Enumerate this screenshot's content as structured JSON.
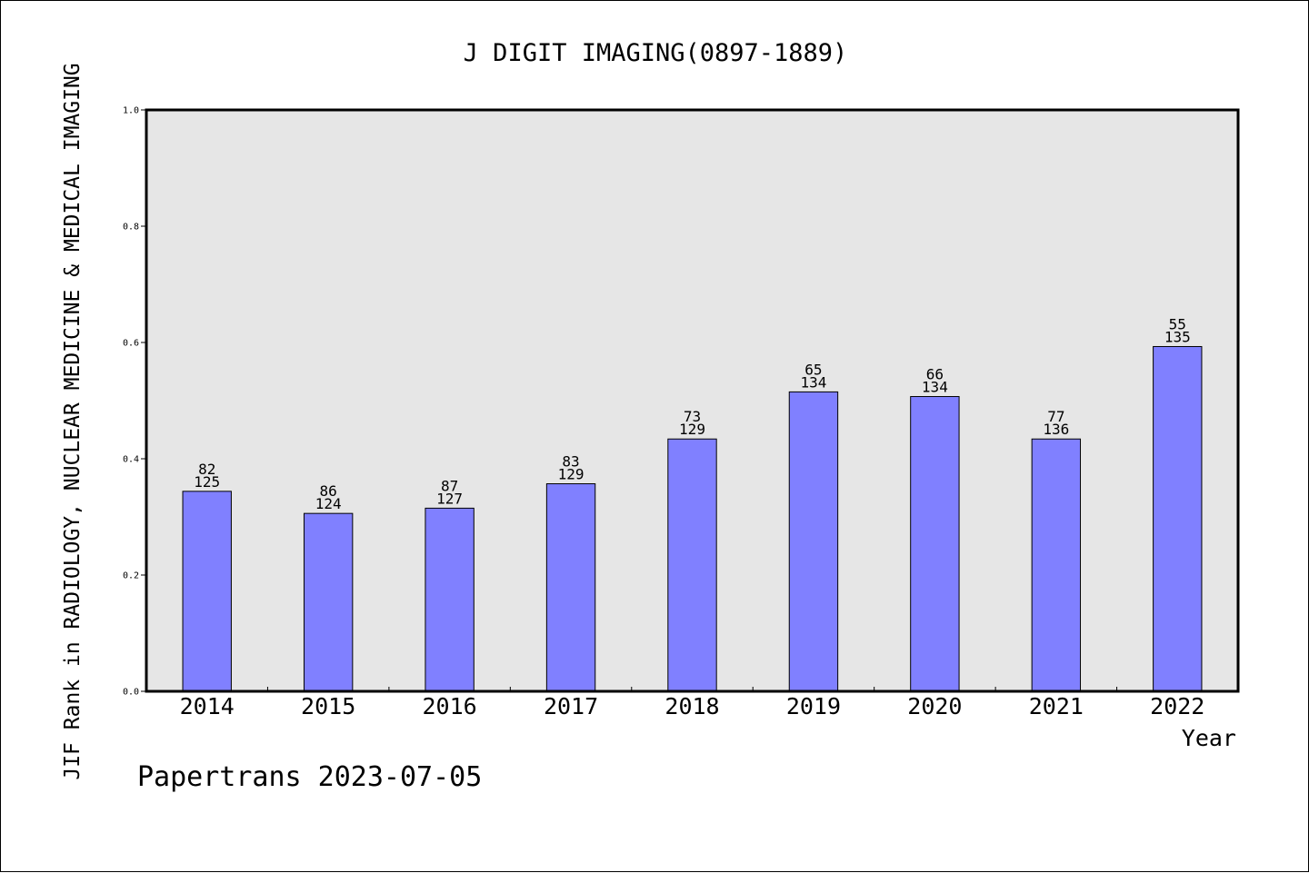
{
  "chart_data": {
    "type": "bar",
    "title": "J DIGIT IMAGING(0897-1889)",
    "xlabel": "Year",
    "ylabel": "JIF Rank in RADIOLOGY, NUCLEAR MEDICINE & MEDICAL IMAGING",
    "ylim": [
      0,
      1.0
    ],
    "yticks": [
      "0.0",
      "0.2",
      "0.4",
      "0.6",
      "0.8",
      "1.0"
    ],
    "categories": [
      "2014",
      "2015",
      "2016",
      "2017",
      "2018",
      "2019",
      "2020",
      "2021",
      "2022"
    ],
    "values": [
      0.344,
      0.306,
      0.315,
      0.357,
      0.434,
      0.515,
      0.507,
      0.434,
      0.593
    ],
    "ranks": [
      "82",
      "86",
      "87",
      "83",
      "73",
      "65",
      "66",
      "77",
      "55"
    ],
    "totals": [
      "125",
      "124",
      "127",
      "129",
      "129",
      "134",
      "134",
      "136",
      "135"
    ],
    "grid": false,
    "colors": {
      "bar": "#8080ff",
      "plot_background": "#e6e6e6",
      "axis": "#000000"
    }
  },
  "footer": {
    "credit": "Papertrans 2023-07-05"
  }
}
